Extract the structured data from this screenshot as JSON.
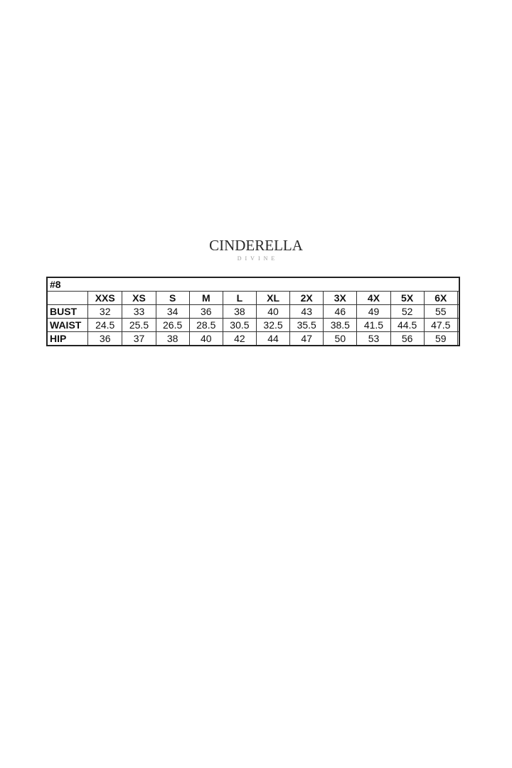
{
  "logo": {
    "main": "CINDERELLA",
    "sub": "DIVINE"
  },
  "table": {
    "title": "#8",
    "sizes": [
      "XXS",
      "XS",
      "S",
      "M",
      "L",
      "XL",
      "2X",
      "3X",
      "4X",
      "5X",
      "6X",
      ""
    ],
    "rows": [
      {
        "label": "BUST",
        "values": [
          "32",
          "33",
          "34",
          "36",
          "38",
          "40",
          "43",
          "46",
          "49",
          "52",
          "55",
          ""
        ]
      },
      {
        "label": "WAIST",
        "values": [
          "24.5",
          "25.5",
          "26.5",
          "28.5",
          "30.5",
          "32.5",
          "35.5",
          "38.5",
          "41.5",
          "44.5",
          "47.5",
          ""
        ]
      },
      {
        "label": "HIP",
        "values": [
          "36",
          "37",
          "38",
          "40",
          "42",
          "44",
          "47",
          "50",
          "53",
          "56",
          "59",
          ""
        ]
      }
    ]
  }
}
